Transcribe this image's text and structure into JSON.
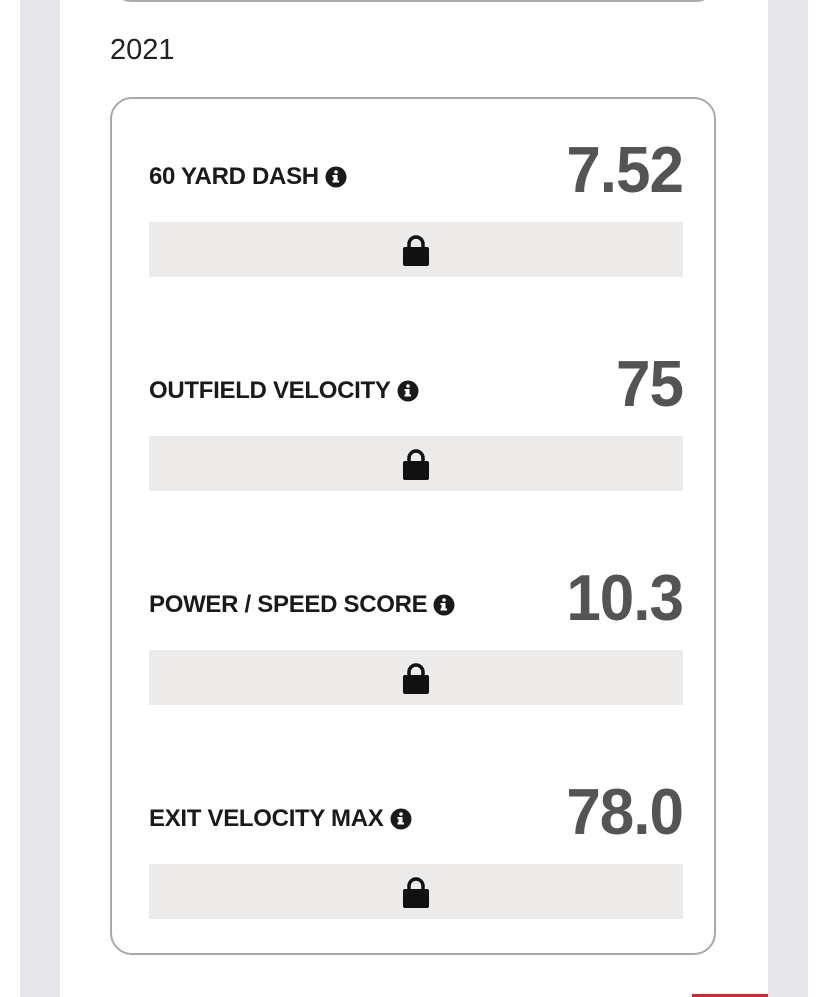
{
  "year": "2021",
  "metrics": [
    {
      "label": "60 YARD DASH",
      "value": "7.52"
    },
    {
      "label": "OUTFIELD VELOCITY",
      "value": "75"
    },
    {
      "label": "POWER / SPEED SCORE",
      "value": "10.3"
    },
    {
      "label": "EXIT VELOCITY MAX",
      "value": "78.0"
    }
  ]
}
